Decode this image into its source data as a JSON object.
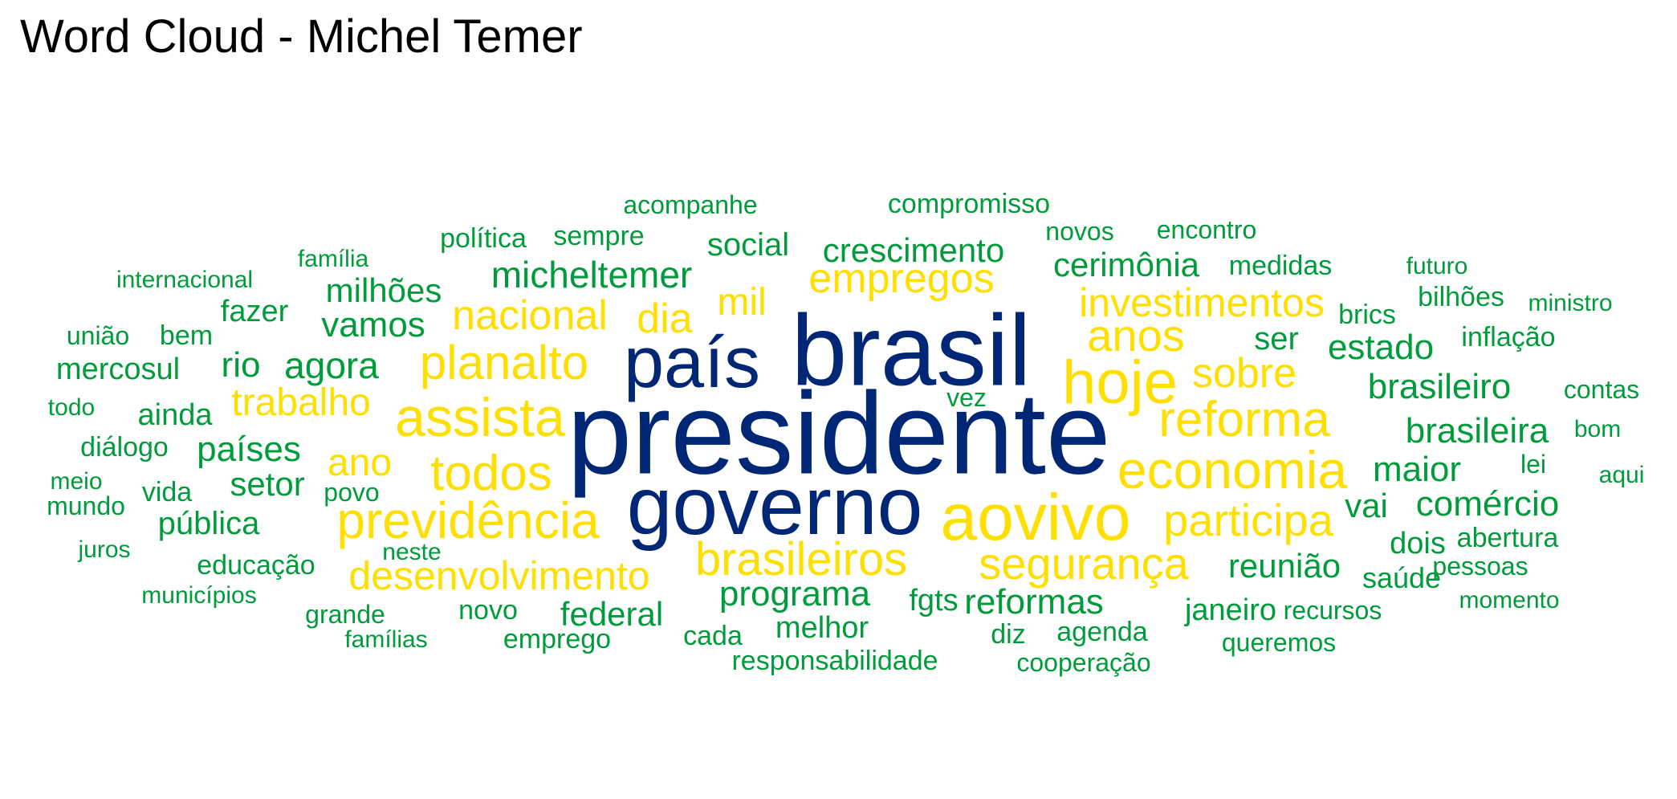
{
  "title": "Word Cloud - Michel Temer",
  "colors": {
    "blue": "#002776",
    "yellow": "#FFDF00",
    "green": "#009C3B"
  },
  "chart_data": {
    "type": "wordcloud",
    "words": [
      {
        "text": "presidente",
        "color": "blue"
      },
      {
        "text": "brasil",
        "color": "blue"
      },
      {
        "text": "governo",
        "color": "blue"
      },
      {
        "text": "país",
        "color": "blue"
      },
      {
        "text": "aovivo",
        "color": "yellow"
      },
      {
        "text": "hoje",
        "color": "yellow"
      },
      {
        "text": "economia",
        "color": "yellow"
      },
      {
        "text": "assista",
        "color": "yellow"
      },
      {
        "text": "previdência",
        "color": "yellow"
      },
      {
        "text": "reforma",
        "color": "yellow"
      },
      {
        "text": "todos",
        "color": "yellow"
      },
      {
        "text": "segurança",
        "color": "yellow"
      },
      {
        "text": "brasileiros",
        "color": "yellow"
      },
      {
        "text": "planalto",
        "color": "yellow"
      },
      {
        "text": "participa",
        "color": "yellow"
      },
      {
        "text": "anos",
        "color": "yellow"
      },
      {
        "text": "desenvolvimento",
        "color": "yellow"
      },
      {
        "text": "sobre",
        "color": "yellow"
      },
      {
        "text": "investimentos",
        "color": "yellow"
      },
      {
        "text": "nacional",
        "color": "yellow"
      },
      {
        "text": "empregos",
        "color": "yellow"
      },
      {
        "text": "dia",
        "color": "yellow"
      },
      {
        "text": "trabalho",
        "color": "yellow"
      },
      {
        "text": "ano",
        "color": "yellow"
      },
      {
        "text": "mil",
        "color": "yellow"
      },
      {
        "text": "micheltemer",
        "color": "green"
      },
      {
        "text": "crescimento",
        "color": "green"
      },
      {
        "text": "cerimônia",
        "color": "green"
      },
      {
        "text": "programa",
        "color": "green"
      },
      {
        "text": "brasileiro",
        "color": "green"
      },
      {
        "text": "brasileira",
        "color": "green"
      },
      {
        "text": "comércio",
        "color": "green"
      },
      {
        "text": "reformas",
        "color": "green"
      },
      {
        "text": "estado",
        "color": "green"
      },
      {
        "text": "reunião",
        "color": "green"
      },
      {
        "text": "maior",
        "color": "green"
      },
      {
        "text": "social",
        "color": "green"
      },
      {
        "text": "agora",
        "color": "green"
      },
      {
        "text": "países",
        "color": "green"
      },
      {
        "text": "vamos",
        "color": "green"
      },
      {
        "text": "milhões",
        "color": "green"
      },
      {
        "text": "federal",
        "color": "green"
      },
      {
        "text": "setor",
        "color": "green"
      },
      {
        "text": "pública",
        "color": "green"
      },
      {
        "text": "janeiro",
        "color": "green"
      },
      {
        "text": "melhor",
        "color": "green"
      },
      {
        "text": "vai",
        "color": "green"
      },
      {
        "text": "ser",
        "color": "green"
      },
      {
        "text": "ainda",
        "color": "green"
      },
      {
        "text": "fazer",
        "color": "green"
      },
      {
        "text": "rio",
        "color": "green"
      },
      {
        "text": "fgts",
        "color": "green"
      },
      {
        "text": "dois",
        "color": "green"
      },
      {
        "text": "saúde",
        "color": "green"
      },
      {
        "text": "mercosul",
        "color": "green"
      },
      {
        "text": "compromisso",
        "color": "green"
      },
      {
        "text": "acompanhe",
        "color": "green"
      },
      {
        "text": "política",
        "color": "green"
      },
      {
        "text": "sempre",
        "color": "green"
      },
      {
        "text": "responsabilidade",
        "color": "green"
      },
      {
        "text": "educação",
        "color": "green"
      },
      {
        "text": "diálogo",
        "color": "green"
      },
      {
        "text": "bilhões",
        "color": "green"
      },
      {
        "text": "inflação",
        "color": "green"
      },
      {
        "text": "medidas",
        "color": "green"
      },
      {
        "text": "abertura",
        "color": "green"
      },
      {
        "text": "brics",
        "color": "green"
      },
      {
        "text": "agenda",
        "color": "green"
      },
      {
        "text": "cooperação",
        "color": "green"
      },
      {
        "text": "recursos",
        "color": "green"
      },
      {
        "text": "queremos",
        "color": "green"
      },
      {
        "text": "emprego",
        "color": "green"
      },
      {
        "text": "cada",
        "color": "green"
      },
      {
        "text": "novo",
        "color": "green"
      },
      {
        "text": "vida",
        "color": "green"
      },
      {
        "text": "povo",
        "color": "green"
      },
      {
        "text": "diz",
        "color": "green"
      },
      {
        "text": "novos",
        "color": "green"
      },
      {
        "text": "encontro",
        "color": "green"
      },
      {
        "text": "contas",
        "color": "green"
      },
      {
        "text": "pessoas",
        "color": "green"
      },
      {
        "text": "momento",
        "color": "green"
      },
      {
        "text": "grande",
        "color": "green"
      },
      {
        "text": "famílias",
        "color": "green"
      },
      {
        "text": "municípios",
        "color": "green"
      },
      {
        "text": "internacional",
        "color": "green"
      },
      {
        "text": "família",
        "color": "green"
      },
      {
        "text": "bem",
        "color": "green"
      },
      {
        "text": "união",
        "color": "green"
      },
      {
        "text": "todo",
        "color": "green"
      },
      {
        "text": "meio",
        "color": "green"
      },
      {
        "text": "mundo",
        "color": "green"
      },
      {
        "text": "juros",
        "color": "green"
      },
      {
        "text": "neste",
        "color": "green"
      },
      {
        "text": "vez",
        "color": "green"
      },
      {
        "text": "futuro",
        "color": "green"
      },
      {
        "text": "ministro",
        "color": "green"
      },
      {
        "text": "bom",
        "color": "green"
      },
      {
        "text": "lei",
        "color": "green"
      },
      {
        "text": "aqui",
        "color": "green"
      }
    ]
  }
}
